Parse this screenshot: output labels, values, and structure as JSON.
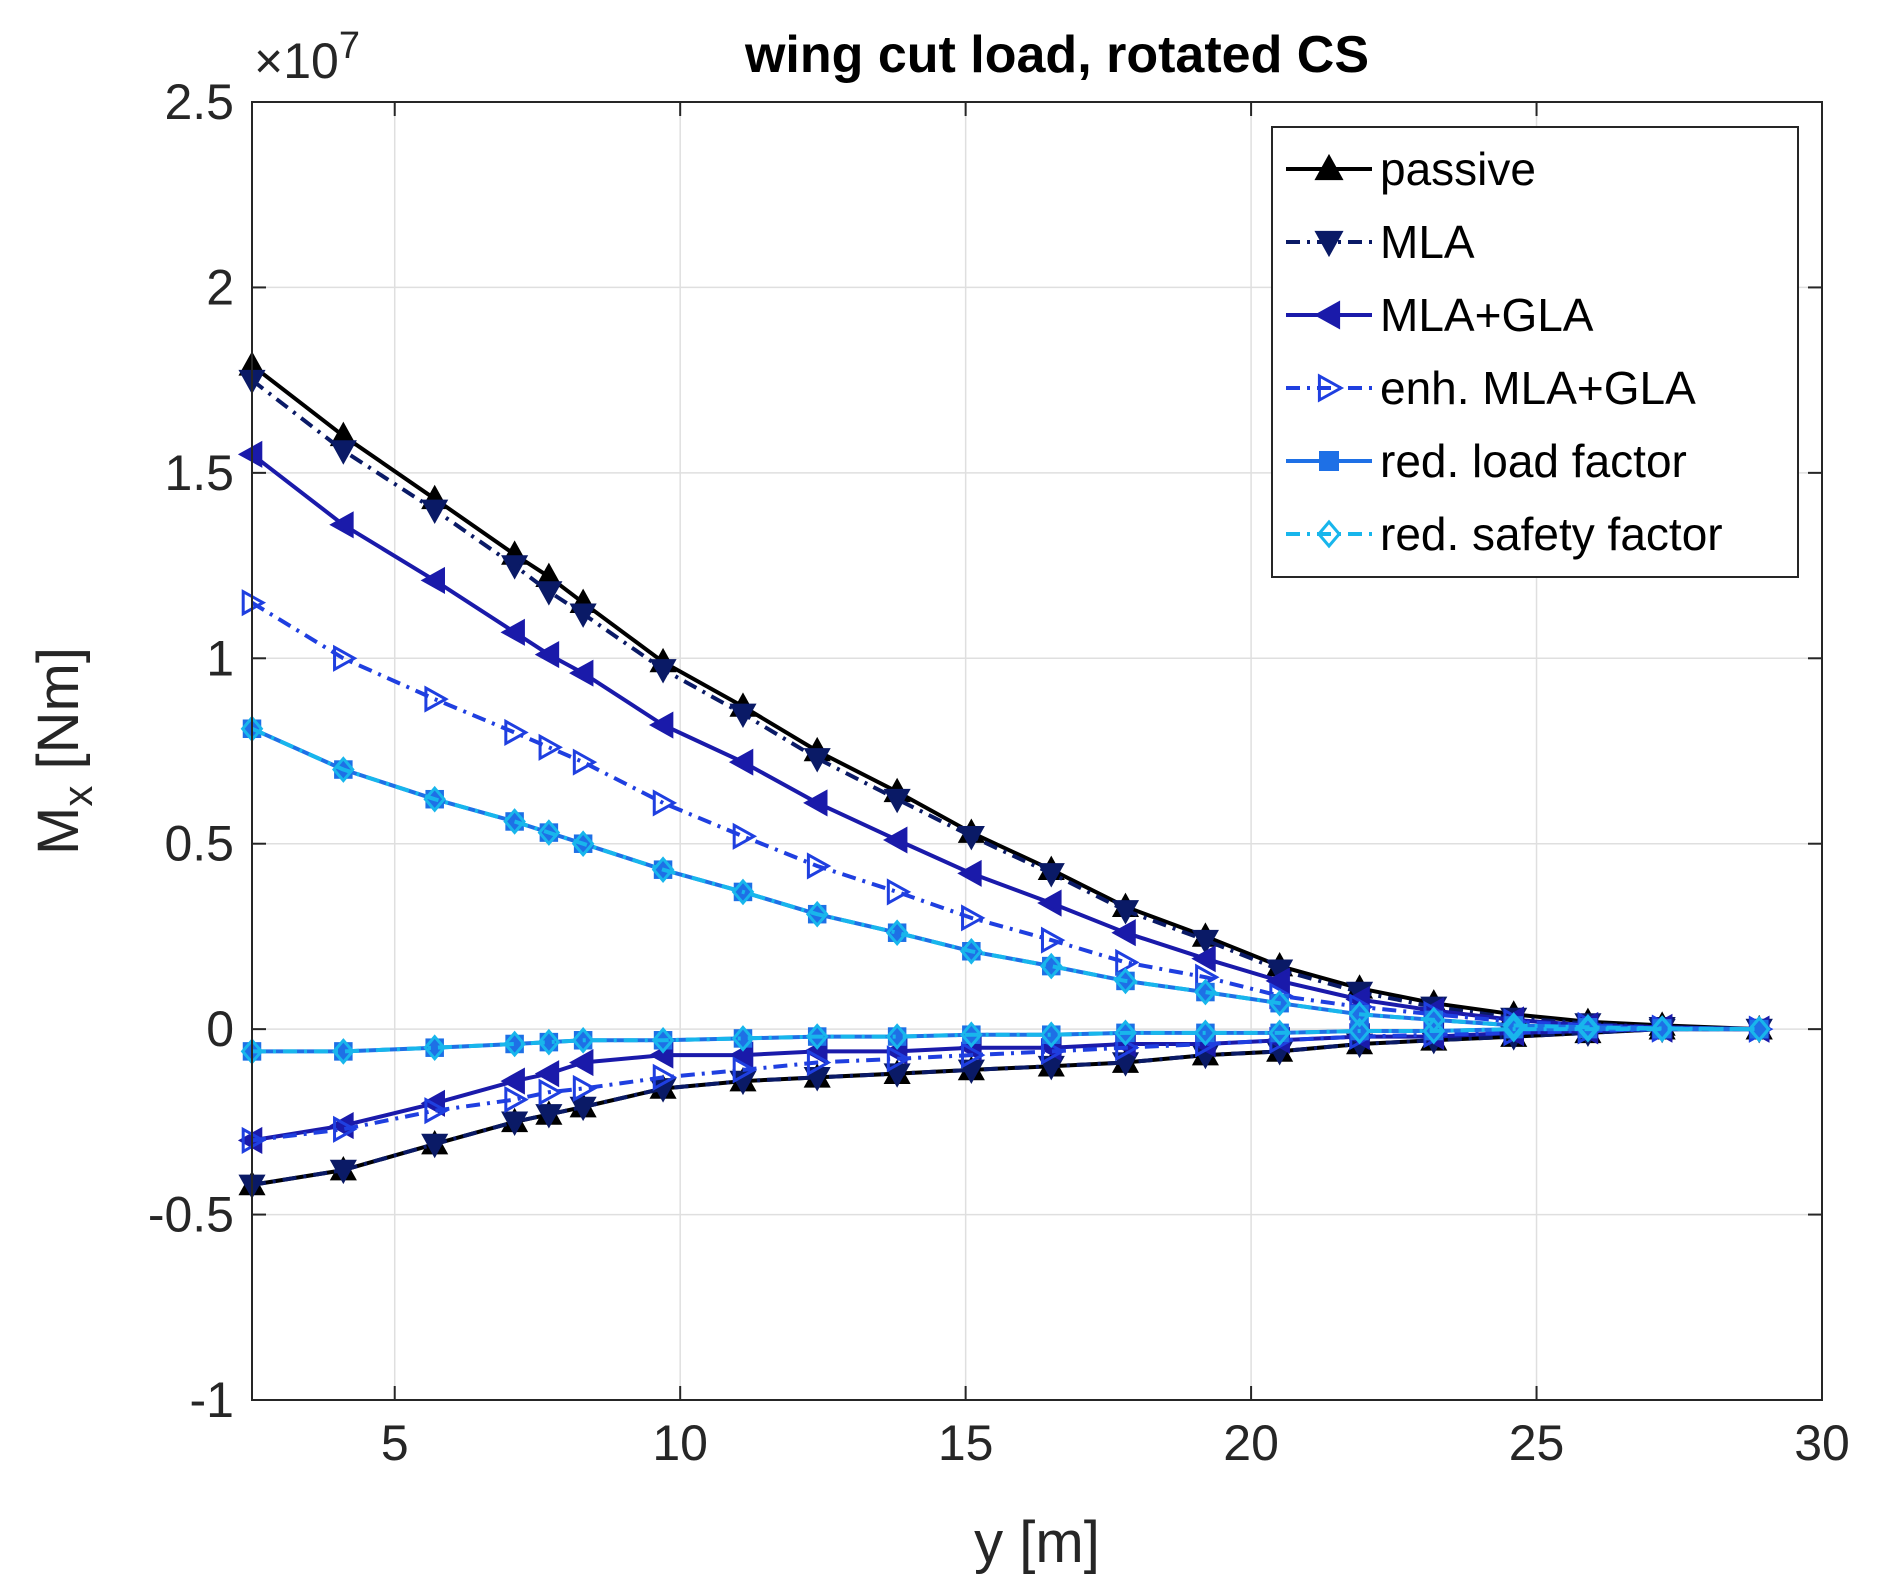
{
  "chart_data": {
    "type": "line",
    "title": "wing cut load, rotated CS",
    "xlabel": "y [m]",
    "ylabel_main": "M",
    "ylabel_sub": "x",
    "ylabel_unit": " [Nm]",
    "y_scale_base": "×10",
    "y_scale_exp": "7",
    "xlim": [
      2.5,
      30
    ],
    "ylim": [
      -1,
      2.5
    ],
    "xticks": [
      5,
      10,
      15,
      20,
      25,
      30
    ],
    "yticks": [
      -1,
      -0.5,
      0,
      0.5,
      1,
      1.5,
      2,
      2.5
    ],
    "xtick_labels": [
      "5",
      "10",
      "15",
      "20",
      "25",
      "30"
    ],
    "ytick_labels": [
      "-1",
      "-0.5",
      "0",
      "0.5",
      "1",
      "1.5",
      "2",
      "2.5"
    ],
    "grid": true,
    "legend_position": "top-right",
    "x": [
      2.5,
      4.1,
      5.7,
      7.1,
      7.7,
      8.3,
      9.7,
      11.1,
      12.4,
      13.8,
      15.1,
      16.5,
      17.8,
      19.2,
      20.5,
      21.9,
      23.2,
      24.6,
      25.9,
      27.2,
      28.9
    ],
    "series": [
      {
        "name": "passive",
        "color": "#000000",
        "dash": "solid",
        "marker": "triangle-up",
        "upper": [
          1.79,
          1.6,
          1.43,
          1.28,
          1.22,
          1.15,
          0.99,
          0.87,
          0.75,
          0.64,
          0.53,
          0.43,
          0.33,
          0.25,
          0.17,
          0.11,
          0.07,
          0.04,
          0.02,
          0.01,
          0.0
        ],
        "lower": [
          -0.42,
          -0.38,
          -0.31,
          -0.25,
          -0.23,
          -0.21,
          -0.16,
          -0.14,
          -0.13,
          -0.12,
          -0.11,
          -0.1,
          -0.09,
          -0.07,
          -0.06,
          -0.04,
          -0.03,
          -0.02,
          -0.01,
          0.0,
          0.0
        ]
      },
      {
        "name": "MLA",
        "color": "#0a1a66",
        "dash": "dashdot",
        "marker": "triangle-down",
        "upper": [
          1.75,
          1.56,
          1.4,
          1.25,
          1.18,
          1.12,
          0.97,
          0.85,
          0.73,
          0.62,
          0.52,
          0.42,
          0.32,
          0.24,
          0.16,
          0.1,
          0.06,
          0.03,
          0.015,
          0.005,
          0.0
        ],
        "lower": [
          -0.42,
          -0.38,
          -0.31,
          -0.25,
          -0.23,
          -0.21,
          -0.16,
          -0.14,
          -0.13,
          -0.12,
          -0.11,
          -0.1,
          -0.09,
          -0.07,
          -0.06,
          -0.04,
          -0.03,
          -0.02,
          -0.01,
          0.0,
          0.0
        ]
      },
      {
        "name": "MLA+GLA",
        "color": "#1a1aaa",
        "dash": "solid",
        "marker": "triangle-left",
        "upper": [
          1.55,
          1.36,
          1.21,
          1.07,
          1.01,
          0.96,
          0.82,
          0.72,
          0.61,
          0.51,
          0.42,
          0.34,
          0.26,
          0.19,
          0.13,
          0.08,
          0.05,
          0.025,
          0.01,
          0.005,
          0.0
        ],
        "lower": [
          -0.3,
          -0.26,
          -0.2,
          -0.14,
          -0.12,
          -0.09,
          -0.07,
          -0.07,
          -0.06,
          -0.06,
          -0.05,
          -0.05,
          -0.04,
          -0.04,
          -0.03,
          -0.02,
          -0.02,
          -0.01,
          -0.005,
          0.0,
          0.0
        ]
      },
      {
        "name": "enh. MLA+GLA",
        "color": "#1f3fe0",
        "dash": "dashdot",
        "marker": "triangle-right",
        "upper": [
          1.15,
          1.0,
          0.89,
          0.8,
          0.76,
          0.72,
          0.61,
          0.52,
          0.44,
          0.37,
          0.3,
          0.24,
          0.18,
          0.14,
          0.09,
          0.06,
          0.04,
          0.02,
          0.01,
          0.003,
          0.0
        ],
        "lower": [
          -0.3,
          -0.27,
          -0.22,
          -0.19,
          -0.17,
          -0.16,
          -0.13,
          -0.11,
          -0.09,
          -0.08,
          -0.07,
          -0.06,
          -0.05,
          -0.04,
          -0.03,
          -0.02,
          -0.015,
          -0.01,
          -0.005,
          0.0,
          0.0
        ]
      },
      {
        "name": "red. load factor",
        "color": "#1e70e6",
        "dash": "solid",
        "marker": "square",
        "upper": [
          0.81,
          0.7,
          0.62,
          0.56,
          0.53,
          0.5,
          0.43,
          0.37,
          0.31,
          0.26,
          0.21,
          0.17,
          0.13,
          0.1,
          0.07,
          0.04,
          0.025,
          0.01,
          0.005,
          0.002,
          0.0
        ],
        "lower": [
          -0.06,
          -0.06,
          -0.05,
          -0.04,
          -0.035,
          -0.03,
          -0.03,
          -0.025,
          -0.02,
          -0.02,
          -0.015,
          -0.015,
          -0.01,
          -0.01,
          -0.01,
          -0.005,
          -0.005,
          0.0,
          0.0,
          0.0,
          0.0
        ]
      },
      {
        "name": "red. safety factor",
        "color": "#18b6ec",
        "dash": "dashdot",
        "marker": "diamond",
        "upper": [
          0.81,
          0.7,
          0.62,
          0.56,
          0.53,
          0.5,
          0.43,
          0.37,
          0.31,
          0.26,
          0.21,
          0.17,
          0.13,
          0.1,
          0.07,
          0.04,
          0.025,
          0.01,
          0.005,
          0.002,
          0.0
        ],
        "lower": [
          -0.06,
          -0.06,
          -0.05,
          -0.04,
          -0.035,
          -0.03,
          -0.03,
          -0.025,
          -0.02,
          -0.02,
          -0.015,
          -0.015,
          -0.01,
          -0.01,
          -0.01,
          -0.005,
          -0.005,
          0.0,
          0.0,
          0.0,
          0.0
        ]
      }
    ]
  }
}
